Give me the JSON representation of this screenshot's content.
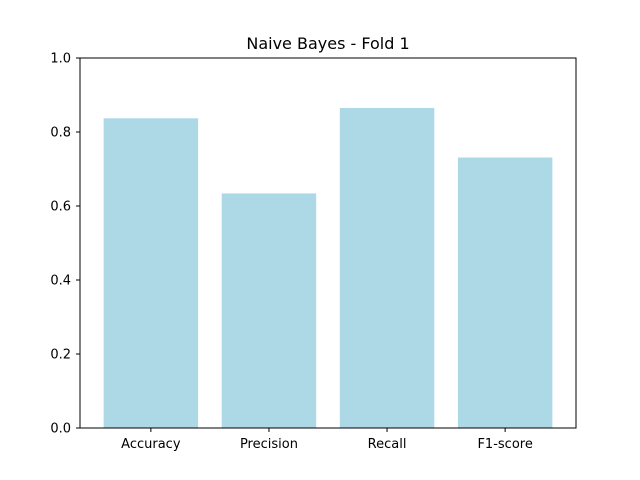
{
  "chart_data": {
    "type": "bar",
    "title": "Naive Bayes - Fold 1",
    "xlabel": "",
    "ylabel": "",
    "categories": [
      "Accuracy",
      "Precision",
      "Recall",
      "F1-score"
    ],
    "values": [
      0.837,
      0.634,
      0.865,
      0.731
    ],
    "ylim": [
      0,
      1.0
    ],
    "yticks": [
      "0.0",
      "0.2",
      "0.4",
      "0.6",
      "0.8",
      "1.0"
    ],
    "bar_color": "#add8e6",
    "grid": false,
    "legend": "none"
  }
}
